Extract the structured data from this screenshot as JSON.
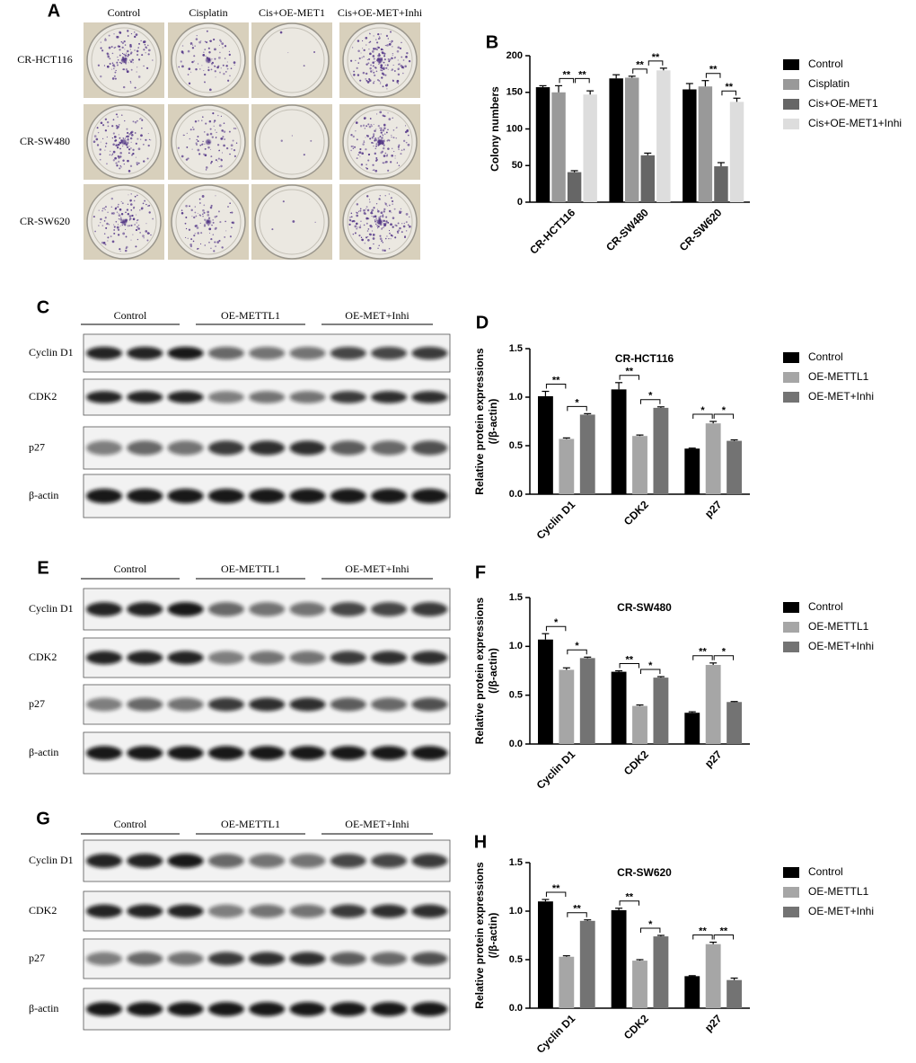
{
  "panel_labels": [
    "A",
    "B",
    "C",
    "D",
    "E",
    "F",
    "G",
    "H"
  ],
  "colony": {
    "columns": [
      "Control",
      "Cisplatin",
      "Cis+OE-MET1",
      "Cis+OE-MET+Inhi"
    ],
    "rows": [
      "CR-HCT116",
      "CR-SW480",
      "CR-SW620"
    ]
  },
  "blots": [
    {
      "groups": [
        "Control",
        "OE-METTL1",
        "OE-MET+Inhi"
      ],
      "rows": [
        "Cyclin D1",
        "CDK2",
        "p27",
        "β-actin"
      ]
    },
    {
      "groups": [
        "Control",
        "OE-METTL1",
        "OE-MET+Inhi"
      ],
      "rows": [
        "Cyclin D1",
        "CDK2",
        "p27",
        "β-actin"
      ]
    },
    {
      "groups": [
        "Control",
        "OE-METTL1",
        "OE-MET+Inhi"
      ],
      "rows": [
        "Cyclin D1",
        "CDK2",
        "p27",
        "β-actin"
      ]
    }
  ],
  "chart_data": [
    {
      "type": "bar",
      "ylabel": [
        "Colony numbers"
      ],
      "categories": [
        "CR-HCT116",
        "CR-SW480",
        "CR-SW620"
      ],
      "series": [
        {
          "name": "Control",
          "color": "#000000",
          "values": [
            157,
            169,
            154
          ],
          "errors": [
            2,
            5,
            8
          ]
        },
        {
          "name": "Cisplatin",
          "color": "#999999",
          "values": [
            150,
            170,
            158
          ],
          "errors": [
            9,
            2,
            8
          ]
        },
        {
          "name": "Cis+OE-MET1",
          "color": "#666666",
          "values": [
            41,
            64,
            49
          ],
          "errors": [
            2,
            3,
            5
          ]
        },
        {
          "name": "Cis+OE-MET1+Inhi",
          "color": "#dddddd",
          "values": [
            147,
            180,
            137
          ],
          "errors": [
            5,
            3,
            5
          ]
        }
      ],
      "ylim": [
        0,
        200
      ],
      "yticks": [
        0,
        50,
        100,
        150,
        200
      ],
      "significance": [
        {
          "label": "**",
          "category": 0,
          "from": 1,
          "to": 2
        },
        {
          "label": "**",
          "category": 0,
          "from": 2,
          "to": 3
        },
        {
          "label": "**",
          "category": 1,
          "from": 1,
          "to": 2
        },
        {
          "label": "**",
          "category": 1,
          "from": 2,
          "to": 3
        },
        {
          "label": "**",
          "category": 2,
          "from": 1,
          "to": 2
        },
        {
          "label": "**",
          "category": 2,
          "from": 2,
          "to": 3
        }
      ]
    },
    {
      "type": "bar",
      "title": "CR-HCT116",
      "ylabel": [
        "Relative protein expressions",
        "(/β-actin)"
      ],
      "categories": [
        "Cyclin D1",
        "CDK2",
        "p27"
      ],
      "series": [
        {
          "name": "Control",
          "color": "#000000",
          "values": [
            1.01,
            1.08,
            0.47
          ],
          "errors": [
            0.05,
            0.07,
            0.005
          ]
        },
        {
          "name": "OE-METTL1",
          "color": "#a6a6a6",
          "values": [
            0.57,
            0.6,
            0.73
          ],
          "errors": [
            0.01,
            0.01,
            0.02
          ]
        },
        {
          "name": "OE-MET+Inhi",
          "color": "#737373",
          "values": [
            0.82,
            0.89,
            0.55
          ],
          "errors": [
            0.01,
            0.01,
            0.01
          ]
        }
      ],
      "ylim": [
        0,
        1.5
      ],
      "yticks": [
        {
          "value": 0,
          "label": "0.0"
        },
        0.5,
        {
          "value": 1,
          "label": "1.0"
        },
        1.5
      ],
      "significance": [
        {
          "label": "**",
          "category": 0,
          "from": 0,
          "to": 1
        },
        {
          "label": "*",
          "category": 0,
          "from": 1,
          "to": 2
        },
        {
          "label": "**",
          "category": 1,
          "from": 0,
          "to": 1
        },
        {
          "label": "*",
          "category": 1,
          "from": 1,
          "to": 2
        },
        {
          "label": "*",
          "category": 2,
          "from": 0,
          "to": 1
        },
        {
          "label": "*",
          "category": 2,
          "from": 1,
          "to": 2
        }
      ]
    },
    {
      "type": "bar",
      "title": "CR-SW480",
      "ylabel": [
        "Relative protein expressions",
        "(/β-actin)"
      ],
      "categories": [
        "Cyclin D1",
        "CDK2",
        "p27"
      ],
      "series": [
        {
          "name": "Control",
          "color": "#000000",
          "values": [
            1.07,
            0.74,
            0.32
          ],
          "errors": [
            0.06,
            0.01,
            0.01
          ]
        },
        {
          "name": "OE-METTL1",
          "color": "#a6a6a6",
          "values": [
            0.76,
            0.39,
            0.81
          ],
          "errors": [
            0.02,
            0.01,
            0.02
          ]
        },
        {
          "name": "OE-MET+Inhi",
          "color": "#737373",
          "values": [
            0.88,
            0.68,
            0.43
          ],
          "errors": [
            0.01,
            0.01,
            0.005
          ]
        }
      ],
      "ylim": [
        0,
        1.5
      ],
      "yticks": [
        {
          "value": 0,
          "label": "0.0"
        },
        0.5,
        {
          "value": 1,
          "label": "1.0"
        },
        1.5
      ],
      "significance": [
        {
          "label": "*",
          "category": 0,
          "from": 0,
          "to": 1
        },
        {
          "label": "*",
          "category": 0,
          "from": 1,
          "to": 2
        },
        {
          "label": "**",
          "category": 1,
          "from": 0,
          "to": 1
        },
        {
          "label": "*",
          "category": 1,
          "from": 1,
          "to": 2
        },
        {
          "label": "**",
          "category": 2,
          "from": 0,
          "to": 1
        },
        {
          "label": "*",
          "category": 2,
          "from": 1,
          "to": 2
        }
      ]
    },
    {
      "type": "bar",
      "title": "CR-SW620",
      "ylabel": [
        "Relative protein expressions",
        "(/β-actin)"
      ],
      "categories": [
        "Cyclin D1",
        "CDK2",
        "p27"
      ],
      "series": [
        {
          "name": "Control",
          "color": "#000000",
          "values": [
            1.1,
            1.01,
            0.33
          ],
          "errors": [
            0.02,
            0.02,
            0.005
          ]
        },
        {
          "name": "OE-METTL1",
          "color": "#a6a6a6",
          "values": [
            0.53,
            0.49,
            0.66
          ],
          "errors": [
            0.01,
            0.01,
            0.02
          ]
        },
        {
          "name": "OE-MET+Inhi",
          "color": "#737373",
          "values": [
            0.9,
            0.74,
            0.29
          ],
          "errors": [
            0.01,
            0.01,
            0.02
          ]
        }
      ],
      "ylim": [
        0,
        1.5
      ],
      "yticks": [
        {
          "value": 0,
          "label": "0.0"
        },
        0.5,
        {
          "value": 1,
          "label": "1.0"
        },
        1.5
      ],
      "significance": [
        {
          "label": "**",
          "category": 0,
          "from": 0,
          "to": 1
        },
        {
          "label": "**",
          "category": 0,
          "from": 1,
          "to": 2
        },
        {
          "label": "**",
          "category": 1,
          "from": 0,
          "to": 1
        },
        {
          "label": "*",
          "category": 1,
          "from": 1,
          "to": 2
        },
        {
          "label": "**",
          "category": 2,
          "from": 0,
          "to": 1
        },
        {
          "label": "**",
          "category": 2,
          "from": 1,
          "to": 2
        }
      ]
    }
  ]
}
